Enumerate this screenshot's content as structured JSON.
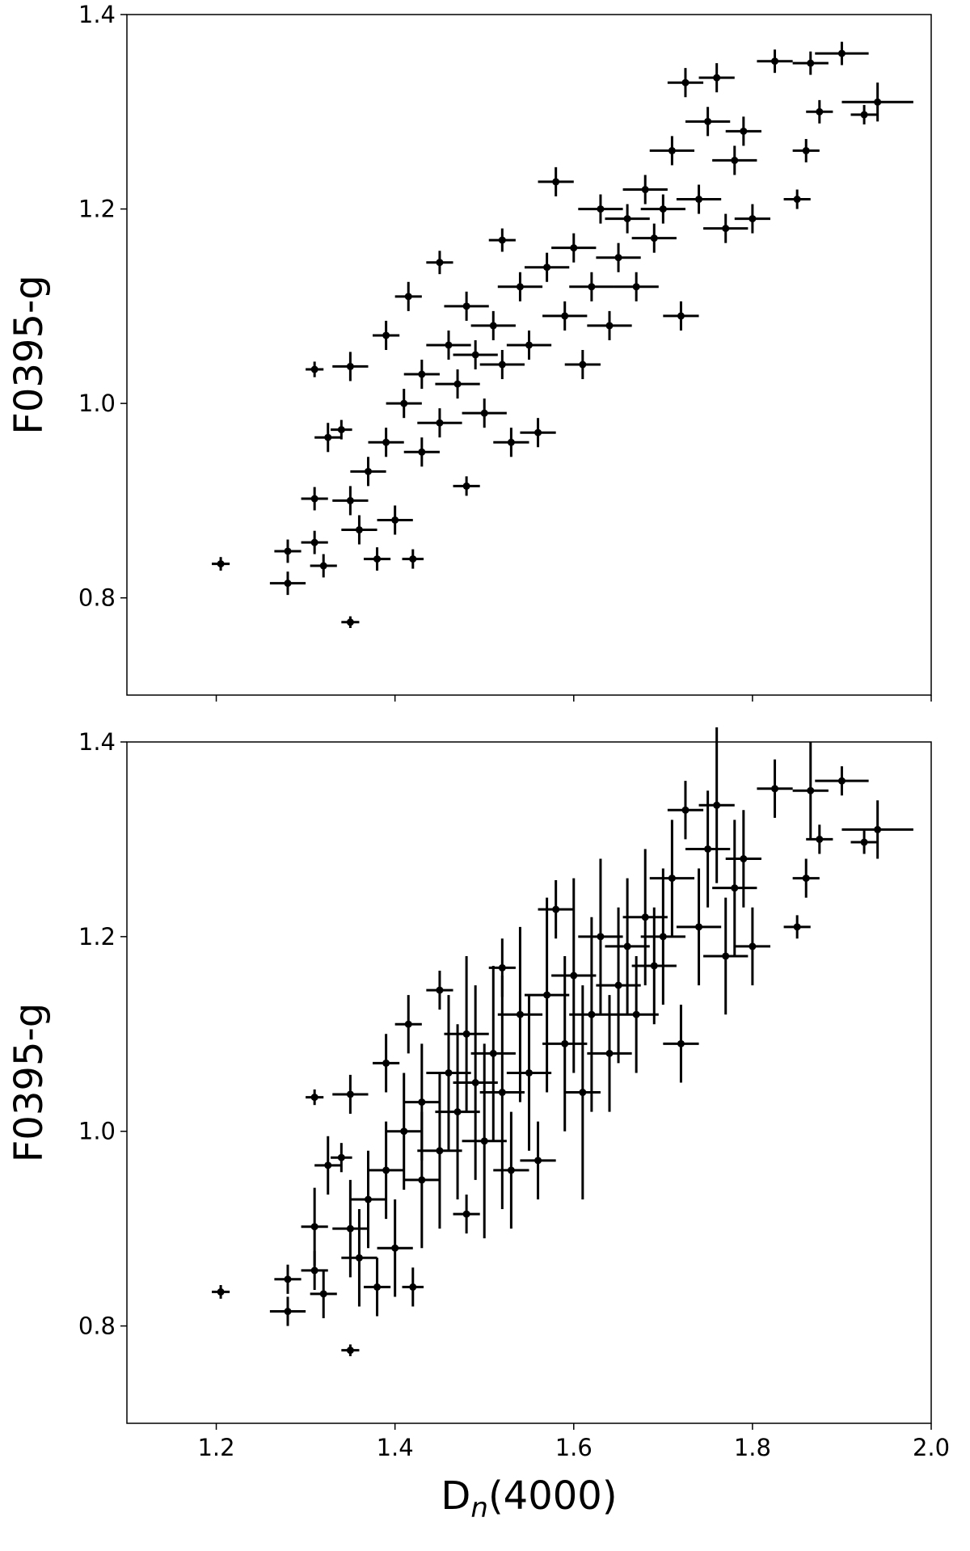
{
  "chart_data": [
    {
      "type": "scatter",
      "ylabel": "F0395-g",
      "xlim": [
        1.1,
        2.0
      ],
      "ylim": [
        0.7,
        1.4
      ],
      "xticks": [
        1.2,
        1.4,
        1.6,
        1.8,
        2
      ],
      "yticks": [
        0.8,
        {
          "value": 1,
          "label": "1.0"
        },
        1.2,
        1.4
      ],
      "series": [
        {
          "color": "#000000",
          "x": [
            1.205,
            1.28,
            1.28,
            1.31,
            1.32,
            1.31,
            1.35,
            1.31,
            1.325,
            1.34,
            1.35,
            1.35,
            1.36,
            1.37,
            1.38,
            1.39,
            1.39,
            1.4,
            1.41,
            1.415,
            1.42,
            1.43,
            1.43,
            1.45,
            1.45,
            1.46,
            1.47,
            1.48,
            1.48,
            1.49,
            1.5,
            1.51,
            1.52,
            1.52,
            1.53,
            1.54,
            1.55,
            1.56,
            1.57,
            1.58,
            1.59,
            1.6,
            1.61,
            1.62,
            1.63,
            1.64,
            1.65,
            1.66,
            1.67,
            1.68,
            1.69,
            1.7,
            1.71,
            1.72,
            1.725,
            1.74,
            1.75,
            1.76,
            1.77,
            1.78,
            1.79,
            1.8,
            1.825,
            1.85,
            1.86,
            1.865,
            1.875,
            1.9,
            1.925,
            1.94
          ],
          "values": [
            0.835,
            0.815,
            0.848,
            0.857,
            0.833,
            0.902,
            0.775,
            1.035,
            0.965,
            0.973,
            1.038,
            0.9,
            0.87,
            0.93,
            0.84,
            0.96,
            1.07,
            0.88,
            1.0,
            1.11,
            0.84,
            0.95,
            1.03,
            1.145,
            0.98,
            1.06,
            1.02,
            0.915,
            1.1,
            1.05,
            0.99,
            1.08,
            1.168,
            1.04,
            0.96,
            1.12,
            1.06,
            0.97,
            1.14,
            1.228,
            1.09,
            1.16,
            1.04,
            1.12,
            1.2,
            1.08,
            1.15,
            1.19,
            1.12,
            1.22,
            1.17,
            1.2,
            1.26,
            1.09,
            1.33,
            1.21,
            1.29,
            1.335,
            1.18,
            1.25,
            1.28,
            1.19,
            1.352,
            1.21,
            1.26,
            1.35,
            1.3,
            1.36,
            1.297,
            1.31
          ],
          "xerr": [
            0.01,
            0.02,
            0.015,
            0.015,
            0.015,
            0.015,
            0.01,
            0.01,
            0.015,
            0.012,
            0.02,
            0.02,
            0.02,
            0.02,
            0.015,
            0.02,
            0.015,
            0.02,
            0.02,
            0.015,
            0.012,
            0.02,
            0.02,
            0.015,
            0.025,
            0.025,
            0.025,
            0.015,
            0.025,
            0.025,
            0.025,
            0.025,
            0.015,
            0.025,
            0.02,
            0.025,
            0.025,
            0.02,
            0.025,
            0.02,
            0.025,
            0.025,
            0.02,
            0.025,
            0.025,
            0.025,
            0.025,
            0.025,
            0.025,
            0.025,
            0.025,
            0.025,
            0.025,
            0.02,
            0.02,
            0.025,
            0.025,
            0.02,
            0.025,
            0.025,
            0.02,
            0.02,
            0.02,
            0.015,
            0.015,
            0.02,
            0.015,
            0.03,
            0.015,
            0.04
          ],
          "yerr": [
            0.007,
            0.012,
            0.012,
            0.012,
            0.012,
            0.012,
            0.006,
            0.008,
            0.015,
            0.01,
            0.015,
            0.015,
            0.015,
            0.015,
            0.012,
            0.015,
            0.015,
            0.015,
            0.015,
            0.015,
            0.01,
            0.015,
            0.015,
            0.012,
            0.015,
            0.015,
            0.015,
            0.01,
            0.015,
            0.015,
            0.015,
            0.015,
            0.012,
            0.015,
            0.015,
            0.015,
            0.015,
            0.015,
            0.015,
            0.015,
            0.015,
            0.015,
            0.015,
            0.015,
            0.015,
            0.015,
            0.015,
            0.015,
            0.015,
            0.015,
            0.015,
            0.015,
            0.015,
            0.015,
            0.015,
            0.015,
            0.015,
            0.015,
            0.015,
            0.015,
            0.015,
            0.015,
            0.012,
            0.01,
            0.012,
            0.012,
            0.012,
            0.012,
            0.01,
            0.02
          ]
        }
      ]
    },
    {
      "type": "scatter",
      "ylabel": "F0395-g",
      "xlabel": [
        "D",
        "n",
        "(4000)"
      ],
      "xlim": [
        1.1,
        2.0
      ],
      "ylim": [
        0.7,
        1.4
      ],
      "xticks": [
        1.2,
        1.4,
        1.6,
        1.8,
        {
          "value": 2,
          "label": "2.0"
        }
      ],
      "yticks": [
        0.8,
        {
          "value": 1,
          "label": "1.0"
        },
        1.2,
        1.4
      ],
      "series": [
        {
          "color": "#000000",
          "x": [
            1.205,
            1.28,
            1.28,
            1.31,
            1.32,
            1.31,
            1.35,
            1.31,
            1.325,
            1.34,
            1.35,
            1.35,
            1.36,
            1.37,
            1.38,
            1.39,
            1.39,
            1.4,
            1.41,
            1.415,
            1.42,
            1.43,
            1.43,
            1.45,
            1.45,
            1.46,
            1.47,
            1.48,
            1.48,
            1.49,
            1.5,
            1.51,
            1.52,
            1.52,
            1.53,
            1.54,
            1.55,
            1.56,
            1.57,
            1.58,
            1.59,
            1.6,
            1.61,
            1.62,
            1.63,
            1.64,
            1.65,
            1.66,
            1.67,
            1.68,
            1.69,
            1.7,
            1.71,
            1.72,
            1.725,
            1.74,
            1.75,
            1.76,
            1.77,
            1.78,
            1.79,
            1.8,
            1.825,
            1.85,
            1.86,
            1.865,
            1.875,
            1.9,
            1.925,
            1.94
          ],
          "values": [
            0.835,
            0.815,
            0.848,
            0.857,
            0.833,
            0.902,
            0.775,
            1.035,
            0.965,
            0.973,
            1.038,
            0.9,
            0.87,
            0.93,
            0.84,
            0.96,
            1.07,
            0.88,
            1.0,
            1.11,
            0.84,
            0.95,
            1.03,
            1.145,
            0.98,
            1.06,
            1.02,
            0.915,
            1.1,
            1.05,
            0.99,
            1.08,
            1.168,
            1.04,
            0.96,
            1.12,
            1.06,
            0.97,
            1.14,
            1.228,
            1.09,
            1.16,
            1.04,
            1.12,
            1.2,
            1.08,
            1.15,
            1.19,
            1.12,
            1.22,
            1.17,
            1.2,
            1.26,
            1.09,
            1.33,
            1.21,
            1.29,
            1.335,
            1.18,
            1.25,
            1.28,
            1.19,
            1.352,
            1.21,
            1.26,
            1.35,
            1.3,
            1.36,
            1.297,
            1.31
          ],
          "xerr": [
            0.01,
            0.02,
            0.015,
            0.015,
            0.015,
            0.015,
            0.01,
            0.01,
            0.015,
            0.012,
            0.02,
            0.02,
            0.02,
            0.02,
            0.015,
            0.02,
            0.015,
            0.02,
            0.02,
            0.015,
            0.012,
            0.02,
            0.02,
            0.015,
            0.025,
            0.025,
            0.025,
            0.015,
            0.025,
            0.025,
            0.025,
            0.025,
            0.015,
            0.025,
            0.02,
            0.025,
            0.025,
            0.02,
            0.025,
            0.02,
            0.025,
            0.025,
            0.02,
            0.025,
            0.025,
            0.025,
            0.025,
            0.025,
            0.025,
            0.025,
            0.025,
            0.025,
            0.025,
            0.02,
            0.02,
            0.025,
            0.025,
            0.02,
            0.025,
            0.025,
            0.02,
            0.02,
            0.02,
            0.015,
            0.015,
            0.02,
            0.015,
            0.03,
            0.015,
            0.04
          ],
          "yerr": [
            0.007,
            0.015,
            0.015,
            0.02,
            0.025,
            0.04,
            0.006,
            0.008,
            0.03,
            0.015,
            0.02,
            0.05,
            0.05,
            0.05,
            0.03,
            0.05,
            0.03,
            0.05,
            0.06,
            0.03,
            0.02,
            0.07,
            0.06,
            0.02,
            0.08,
            0.08,
            0.09,
            0.02,
            0.08,
            0.1,
            0.1,
            0.09,
            0.03,
            0.12,
            0.06,
            0.09,
            0.08,
            0.04,
            0.1,
            0.03,
            0.09,
            0.1,
            0.11,
            0.1,
            0.08,
            0.06,
            0.08,
            0.07,
            0.06,
            0.07,
            0.06,
            0.07,
            0.06,
            0.04,
            0.03,
            0.06,
            0.06,
            0.08,
            0.06,
            0.07,
            0.05,
            0.04,
            0.03,
            0.012,
            0.02,
            0.05,
            0.015,
            0.015,
            0.012,
            0.03
          ]
        }
      ]
    }
  ]
}
